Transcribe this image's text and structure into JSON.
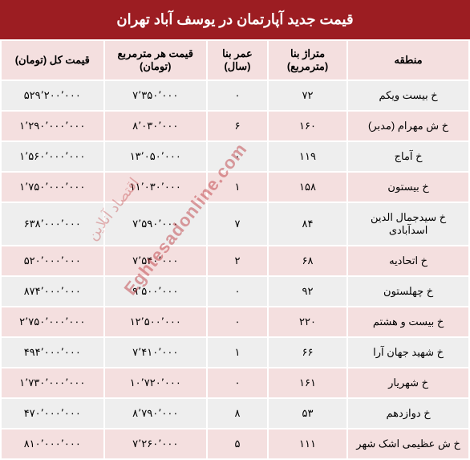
{
  "title": "قیمت جدید آپارتمان در یوسف آباد تهران",
  "columns": {
    "region": "منطقه",
    "area": "متراژ بنا (مترمربع)",
    "age": "عمر بنا (سال)",
    "priceSqm": "قیمت هر مترمربع (تومان)",
    "totalPrice": "قیمت کل (تومان)"
  },
  "rows": [
    {
      "region": "خ بیست ویکم",
      "area": "۷۲",
      "age": "۰",
      "priceSqm": "۷٬۳۵۰٬۰۰۰",
      "totalPrice": "۵۲۹٬۲۰۰٬۰۰۰"
    },
    {
      "region": "خ ش مهرام (مدبر)",
      "area": "۱۶۰",
      "age": "۶",
      "priceSqm": "۸٬۰۳۰٬۰۰۰",
      "totalPrice": "۱٬۲۹۰٬۰۰۰٬۰۰۰"
    },
    {
      "region": "خ آماج",
      "area": "۱۱۹",
      "age": "۰",
      "priceSqm": "۱۳٬۰۵۰٬۰۰۰",
      "totalPrice": "۱٬۵۶۰٬۰۰۰٬۰۰۰"
    },
    {
      "region": "خ بیستون",
      "area": "۱۵۸",
      "age": "۱",
      "priceSqm": "۱۱٬۰۳۰٬۰۰۰",
      "totalPrice": "۱٬۷۵۰٬۰۰۰٬۰۰۰"
    },
    {
      "region": "خ سیدجمال الدین اسدآبادی",
      "area": "۸۴",
      "age": "۷",
      "priceSqm": "۷٬۵۹۰٬۰۰۰",
      "totalPrice": "۶۳۸٬۰۰۰٬۰۰۰"
    },
    {
      "region": "خ اتحادیه",
      "area": "۶۸",
      "age": "۲",
      "priceSqm": "۷٬۵۴۰٬۰۰۰",
      "totalPrice": "۵۲۰٬۰۰۰٬۰۰۰"
    },
    {
      "region": "خ چهلستون",
      "area": "۹۲",
      "age": "۰",
      "priceSqm": "۹٬۵۰۰٬۰۰۰",
      "totalPrice": "۸۷۴٬۰۰۰٬۰۰۰"
    },
    {
      "region": "خ بیست و هشتم",
      "area": "۲۲۰",
      "age": "۰",
      "priceSqm": "۱۲٬۵۰۰٬۰۰۰",
      "totalPrice": "۲٬۷۵۰٬۰۰۰٬۰۰۰"
    },
    {
      "region": "خ شهید جهان آرا",
      "area": "۶۶",
      "age": "۱",
      "priceSqm": "۷٬۴۱۰٬۰۰۰",
      "totalPrice": "۴۹۴٬۰۰۰٬۰۰۰"
    },
    {
      "region": "خ شهریار",
      "area": "۱۶۱",
      "age": "۰",
      "priceSqm": "۱۰٬۷۲۰٬۰۰۰",
      "totalPrice": "۱٬۷۳۰٬۰۰۰٬۰۰۰"
    },
    {
      "region": "خ دوازدهم",
      "area": "۵۳",
      "age": "۸",
      "priceSqm": "۸٬۷۹۰٬۰۰۰",
      "totalPrice": "۴۷۰٬۰۰۰٬۰۰۰"
    },
    {
      "region": "خ ش عظیمی اشک شهر",
      "area": "۱۱۱",
      "age": "۵",
      "priceSqm": "۷٬۲۶۰٬۰۰۰",
      "totalPrice": "۸۱۰٬۰۰۰٬۰۰۰"
    }
  ],
  "watermark": {
    "en": "Eghtesadonline.com",
    "fa": "اقتصاد آنلاین"
  },
  "style": {
    "headerBg": "#9c1d22",
    "headerColor": "#ffffff",
    "thBg": "#f4dfdf",
    "oddRowBg": "#eeeeee",
    "evenRowBg": "#f4dfdf",
    "borderColor": "#ffffff",
    "watermarkColor": "rgba(185, 45, 50, 0.45)"
  }
}
